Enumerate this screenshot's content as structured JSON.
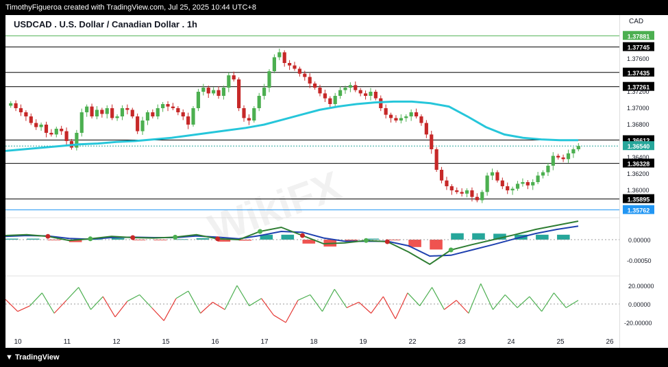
{
  "header": {
    "credit": "TimothyFigueroa created with TradingView.com, Jul 25, 2025 10:44 UTC+8"
  },
  "chart_title": "USDCAD . U.S. Dollar / Canadian Dollar . 1h",
  "currency": "CAD",
  "footer": {
    "brand": "TradingView"
  },
  "watermark": "WikiFX",
  "chart_data": {
    "type": "candlestick",
    "x_ticks": [
      "10",
      "11",
      "12",
      "15",
      "16",
      "17",
      "18",
      "19",
      "22",
      "23",
      "24",
      "25",
      "26"
    ],
    "price_axis": {
      "ticks": [
        "1.37600",
        "1.37200",
        "1.37000",
        "1.36800",
        "1.36400",
        "1.36200",
        "1.36000"
      ],
      "range": [
        1.357,
        1.3795
      ]
    },
    "horizontal_levels": [
      {
        "label": "1.37881",
        "value": 1.37881,
        "color": "#4caf50"
      },
      {
        "label": "1.37745",
        "value": 1.37745,
        "color": "#000000"
      },
      {
        "label": "1.37435",
        "value": 1.37435,
        "color": "#000000"
      },
      {
        "label": "1.37261",
        "value": 1.37261,
        "color": "#000000"
      },
      {
        "label": "1.36612",
        "value": 1.36612,
        "color": "#000000"
      },
      {
        "label": "1.36540",
        "value": 1.3654,
        "color": "#26a69a"
      },
      {
        "label": "1.36328",
        "value": 1.36328,
        "color": "#000000"
      },
      {
        "label": "1.35895",
        "value": 1.35895,
        "color": "#000000"
      },
      {
        "label": "1.35762",
        "value": 1.35762,
        "color": "#2196f3"
      }
    ],
    "close_series": [
      1.3706,
      1.37,
      1.3695,
      1.369,
      1.3682,
      1.3677,
      1.368,
      1.367,
      1.3668,
      1.3675,
      1.3672,
      1.366,
      1.3652,
      1.367,
      1.3695,
      1.3702,
      1.369,
      1.3698,
      1.3693,
      1.37,
      1.3688,
      1.369,
      1.37,
      1.3698,
      1.369,
      1.3672,
      1.3685,
      1.3695,
      1.369,
      1.37,
      1.3705,
      1.3702,
      1.37,
      1.3695,
      1.369,
      1.368,
      1.37,
      1.372,
      1.3725,
      1.3718,
      1.3722,
      1.3715,
      1.3725,
      1.374,
      1.3735,
      1.37,
      1.3688,
      1.3685,
      1.37,
      1.3715,
      1.3725,
      1.3745,
      1.3762,
      1.3768,
      1.3755,
      1.3752,
      1.3748,
      1.3742,
      1.3738,
      1.373,
      1.3725,
      1.3718,
      1.3712,
      1.3705,
      1.3715,
      1.3722,
      1.3725,
      1.3728,
      1.3722,
      1.3718,
      1.3715,
      1.372,
      1.3712,
      1.37,
      1.3692,
      1.3688,
      1.3685,
      1.3688,
      1.369,
      1.3695,
      1.369,
      1.3682,
      1.3668,
      1.365,
      1.3625,
      1.3612,
      1.3605,
      1.36,
      1.3598,
      1.3596,
      1.36,
      1.3592,
      1.3588,
      1.3598,
      1.3618,
      1.3622,
      1.3612,
      1.3605,
      1.36,
      1.3602,
      1.3608,
      1.361,
      1.3606,
      1.361,
      1.3618,
      1.3622,
      1.363,
      1.3642,
      1.364,
      1.3638,
      1.3645,
      1.365,
      1.3654
    ],
    "ma_series": [
      1.3648,
      1.365,
      1.3652,
      1.3654,
      1.3656,
      1.3657,
      1.3659,
      1.366,
      1.3662,
      1.3664,
      1.3667,
      1.367,
      1.3673,
      1.3676,
      1.368,
      1.3686,
      1.3692,
      1.3698,
      1.3702,
      1.3705,
      1.3707,
      1.3708,
      1.3708,
      1.3706,
      1.3702,
      1.369,
      1.3677,
      1.3668,
      1.3664,
      1.3662,
      1.3661,
      1.3661
    ],
    "macd": {
      "zero_label": "0.00000",
      "neg_label": "-0.00050",
      "macd_line": [
        0.0001,
        0.00012,
        8e-05,
        -2e-05,
        2e-05,
        8e-05,
        5e-05,
        4e-05,
        6e-05,
        0.00012,
        2e-05,
        0.0,
        0.0002,
        0.0003,
        0.0001,
        -0.0001,
        -8e-05,
        -2e-05,
        -5e-05,
        -0.0003,
        -0.0006,
        -0.00025,
        -0.00012,
        0.0,
        0.00012,
        0.00025,
        0.00035,
        0.00045
      ],
      "signal_line": [
        8e-05,
        0.0001,
        9e-05,
        3e-05,
        1e-05,
        5e-05,
        6e-05,
        5e-05,
        5e-05,
        9e-05,
        6e-05,
        2e-05,
        0.0001,
        0.0002,
        0.00018,
        4e-05,
        -4e-05,
        -4e-05,
        -4e-05,
        -0.00015,
        -0.0004,
        -0.00038,
        -0.00025,
        -0.00012,
        2e-05,
        0.00015,
        0.00025,
        0.00033
      ]
    },
    "rsi_like": {
      "labels": [
        "20.00000",
        "0.00000",
        "-20.00000"
      ],
      "values": [
        5,
        -8,
        -2,
        12,
        -10,
        4,
        18,
        -6,
        8,
        -14,
        3,
        10,
        -4,
        -18,
        6,
        14,
        -10,
        2,
        -6,
        20,
        -2,
        6,
        -12,
        -20,
        4,
        10,
        -8,
        16,
        -4,
        2,
        -10,
        8,
        -16,
        12,
        -2,
        18,
        -6,
        4,
        -10,
        22,
        -6,
        10,
        -4,
        8,
        -8,
        12,
        -4,
        4
      ]
    }
  }
}
